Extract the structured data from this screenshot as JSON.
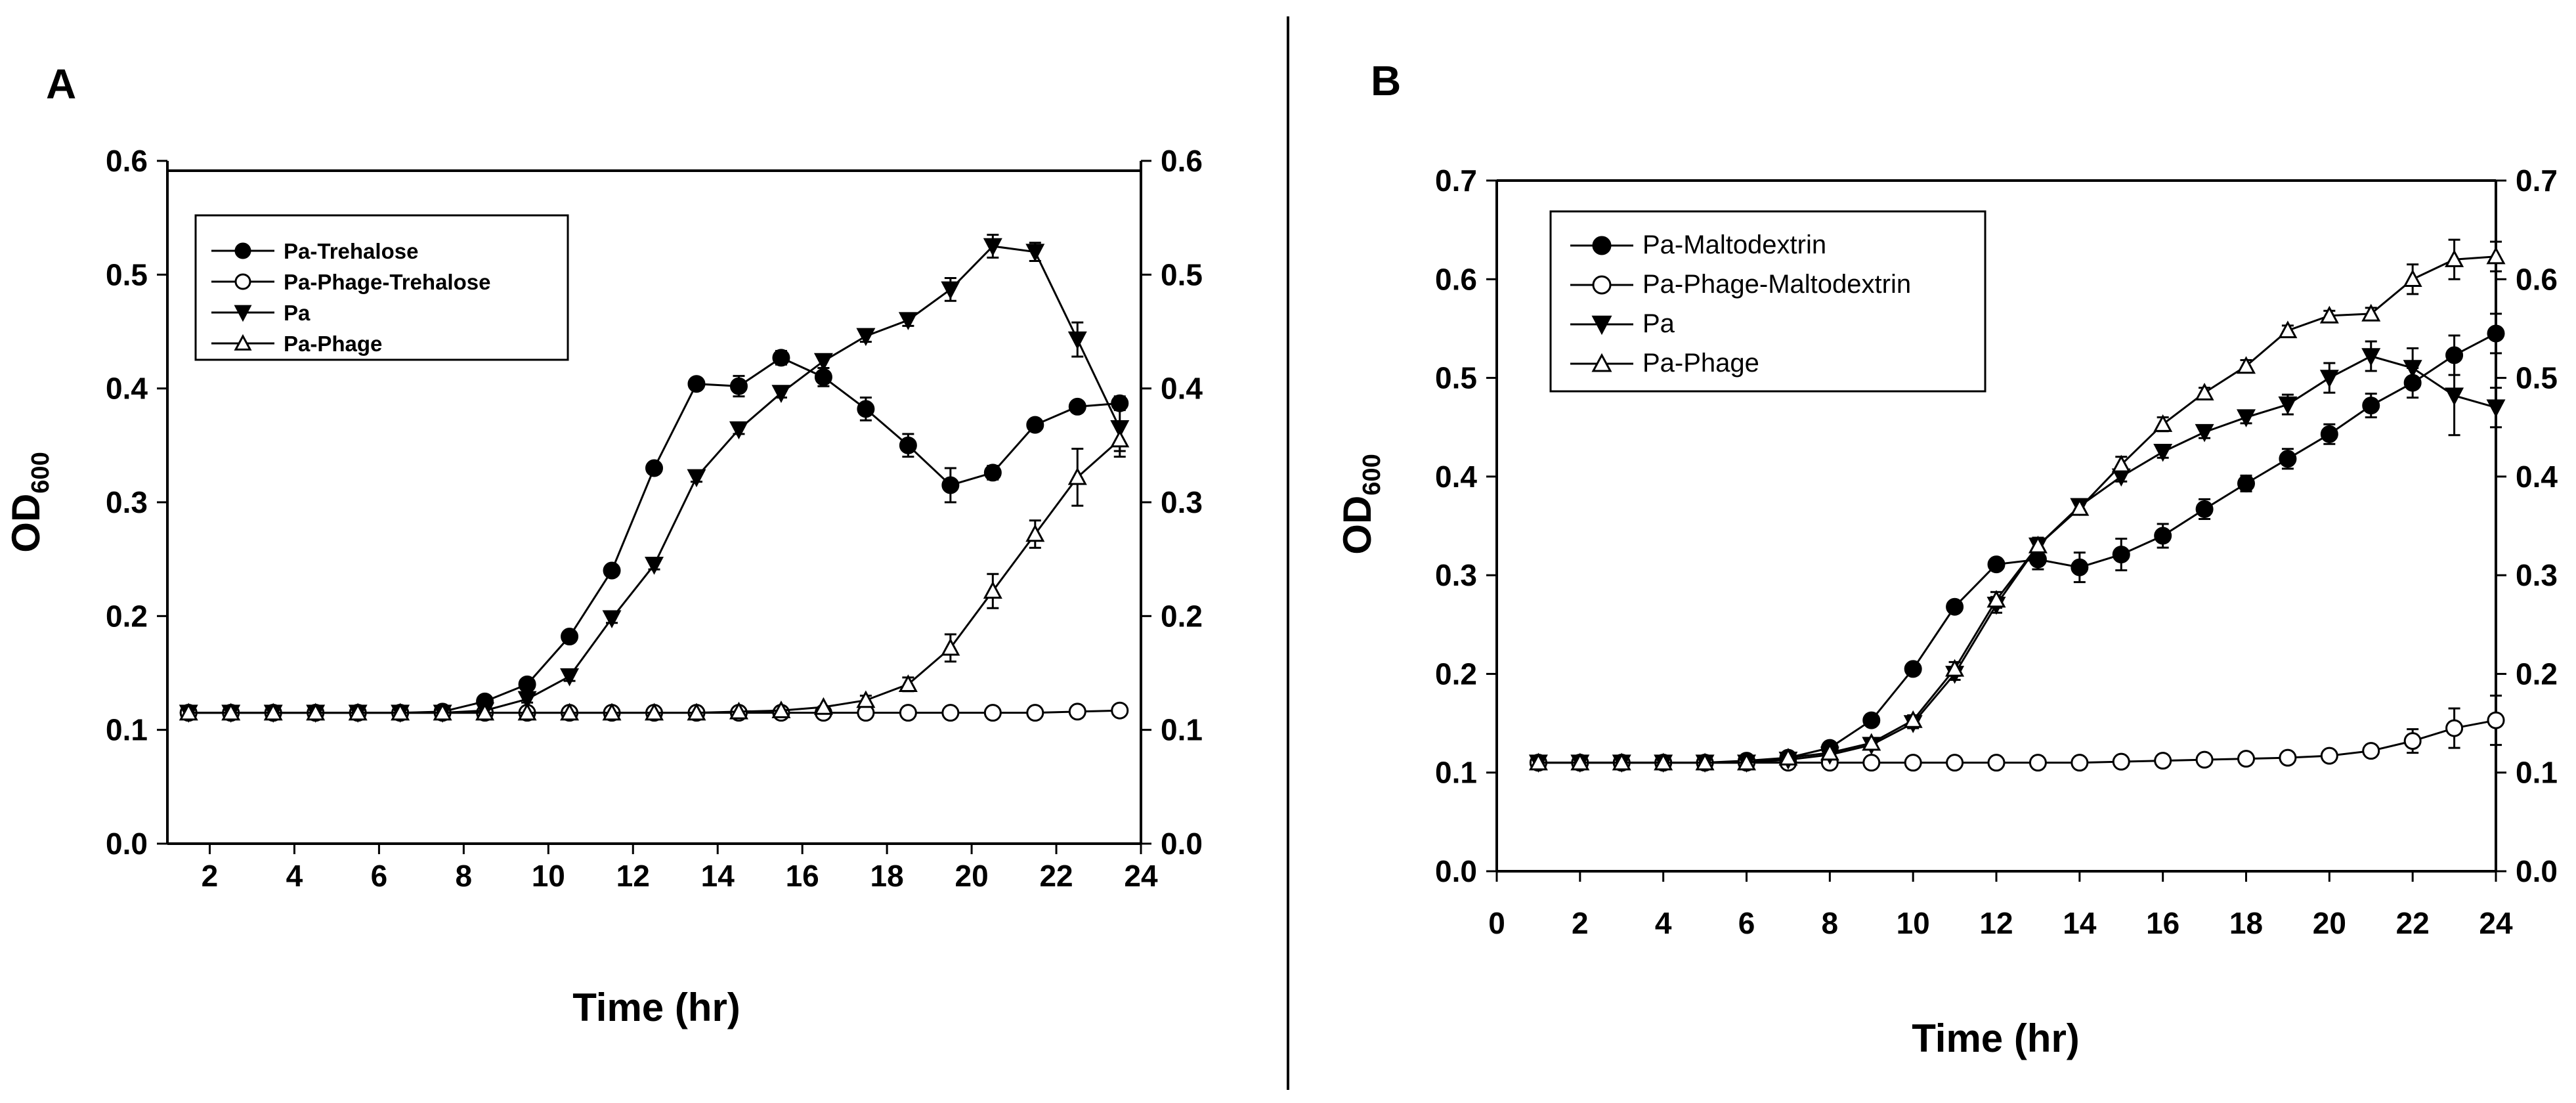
{
  "figure": {
    "divider_color": "#000000"
  },
  "chart_data": [
    {
      "panel_label": "A",
      "type": "line",
      "title": "",
      "xlabel": "Time (hr)",
      "ylabel_main": "OD",
      "ylabel_sub": "600",
      "xlim": [
        1,
        24
      ],
      "ylim": [
        0.0,
        0.6
      ],
      "y2lim": [
        0.0,
        0.6
      ],
      "xticks": [
        2,
        4,
        6,
        8,
        10,
        12,
        14,
        16,
        18,
        20,
        22,
        24
      ],
      "yticks": [
        "0.0",
        "0.1",
        "0.2",
        "0.3",
        "0.4",
        "0.5",
        "0.6"
      ],
      "y2ticks": [
        "0.0",
        "0.1",
        "0.2",
        "0.3",
        "0.4",
        "0.5",
        "0.6"
      ],
      "grid": false,
      "legend_position": "top-left",
      "x": [
        1.5,
        2.5,
        3.5,
        4.5,
        5.5,
        6.5,
        7.5,
        8.5,
        9.5,
        10.5,
        11.5,
        12.5,
        13.5,
        14.5,
        15.5,
        16.5,
        17.5,
        18.5,
        19.5,
        20.5,
        21.5,
        22.5,
        23.5
      ],
      "series": [
        {
          "name": "Pa-Trehalose",
          "marker": "filled-circle",
          "values": [
            0.115,
            0.115,
            0.115,
            0.115,
            0.115,
            0.115,
            0.116,
            0.125,
            0.14,
            0.182,
            0.24,
            0.33,
            0.404,
            0.402,
            0.427,
            0.41,
            0.382,
            0.35,
            0.315,
            0.326,
            0.368,
            0.384,
            0.387
          ],
          "errors": [
            0,
            0,
            0,
            0,
            0,
            0,
            0,
            0,
            0.004,
            0.005,
            0.005,
            0.005,
            0.005,
            0.009,
            0.006,
            0.008,
            0.01,
            0.01,
            0.015,
            0.006,
            0.005,
            0.005,
            0.006
          ]
        },
        {
          "name": "Pa-Phage-Trehalose",
          "marker": "open-circle",
          "values": [
            0.115,
            0.115,
            0.115,
            0.115,
            0.115,
            0.115,
            0.115,
            0.115,
            0.115,
            0.115,
            0.115,
            0.115,
            0.115,
            0.115,
            0.115,
            0.115,
            0.115,
            0.115,
            0.115,
            0.115,
            0.115,
            0.116,
            0.117
          ],
          "errors": [
            0,
            0,
            0,
            0,
            0,
            0,
            0,
            0,
            0,
            0,
            0,
            0,
            0,
            0,
            0,
            0,
            0,
            0,
            0,
            0,
            0,
            0,
            0
          ]
        },
        {
          "name": "Pa",
          "marker": "filled-triangle-down",
          "values": [
            0.115,
            0.115,
            0.115,
            0.115,
            0.115,
            0.115,
            0.115,
            0.117,
            0.127,
            0.147,
            0.198,
            0.245,
            0.322,
            0.364,
            0.396,
            0.424,
            0.446,
            0.46,
            0.487,
            0.525,
            0.52,
            0.443,
            0.365
          ],
          "errors": [
            0,
            0,
            0,
            0,
            0,
            0,
            0,
            0,
            0.003,
            0.004,
            0.004,
            0.004,
            0.004,
            0.004,
            0.004,
            0.006,
            0.005,
            0.005,
            0.01,
            0.01,
            0.008,
            0.015,
            0.02
          ]
        },
        {
          "name": "Pa-Phage",
          "marker": "open-triangle-up",
          "values": [
            0.115,
            0.115,
            0.115,
            0.115,
            0.115,
            0.115,
            0.115,
            0.115,
            0.115,
            0.115,
            0.115,
            0.115,
            0.115,
            0.116,
            0.117,
            0.12,
            0.126,
            0.14,
            0.172,
            0.222,
            0.272,
            0.322,
            0.355
          ],
          "errors": [
            0,
            0,
            0,
            0,
            0,
            0,
            0,
            0,
            0,
            0,
            0,
            0,
            0,
            0,
            0,
            0,
            0.004,
            0.006,
            0.012,
            0.015,
            0.012,
            0.025,
            0.015
          ]
        }
      ]
    },
    {
      "panel_label": "B",
      "type": "line",
      "title": "",
      "xlabel": "Time (hr)",
      "ylabel_main": "OD",
      "ylabel_sub": "600",
      "xlim": [
        0,
        24
      ],
      "ylim": [
        0.0,
        0.7
      ],
      "y2lim": [
        0.0,
        0.7
      ],
      "xticks": [
        0,
        2,
        4,
        6,
        8,
        10,
        12,
        14,
        16,
        18,
        20,
        22,
        24
      ],
      "yticks": [
        "0.0",
        "0.1",
        "0.2",
        "0.3",
        "0.4",
        "0.5",
        "0.6",
        "0.7"
      ],
      "y2ticks": [
        "0.0",
        "0.1",
        "0.2",
        "0.3",
        "0.4",
        "0.5",
        "0.6",
        "0.7"
      ],
      "grid": false,
      "legend_position": "top-left",
      "x": [
        1,
        2,
        3,
        4,
        5,
        6,
        7,
        8,
        9,
        10,
        11,
        12,
        13,
        14,
        15,
        16,
        17,
        18,
        19,
        20,
        21,
        22,
        23,
        24
      ],
      "series": [
        {
          "name": "Pa-Maltodextrin",
          "marker": "filled-circle",
          "values": [
            0.11,
            0.11,
            0.11,
            0.11,
            0.11,
            0.112,
            0.115,
            0.125,
            0.153,
            0.205,
            0.268,
            0.311,
            0.316,
            0.308,
            0.321,
            0.34,
            0.367,
            0.393,
            0.418,
            0.443,
            0.472,
            0.495,
            0.523,
            0.545
          ],
          "errors": [
            0,
            0,
            0,
            0,
            0,
            0,
            0,
            0,
            0.005,
            0.005,
            0.005,
            0.005,
            0.01,
            0.015,
            0.016,
            0.012,
            0.01,
            0.008,
            0.01,
            0.01,
            0.012,
            0.015,
            0.02,
            0.02
          ]
        },
        {
          "name": "Pa-Phage-Maltodextrin",
          "marker": "open-circle",
          "values": [
            0.11,
            0.11,
            0.11,
            0.11,
            0.11,
            0.11,
            0.11,
            0.11,
            0.11,
            0.11,
            0.11,
            0.11,
            0.11,
            0.11,
            0.111,
            0.112,
            0.113,
            0.114,
            0.115,
            0.117,
            0.122,
            0.132,
            0.145,
            0.153
          ],
          "errors": [
            0,
            0,
            0,
            0,
            0,
            0,
            0,
            0,
            0,
            0,
            0,
            0,
            0,
            0,
            0,
            0,
            0,
            0,
            0,
            0.003,
            0.005,
            0.012,
            0.02,
            0.025
          ]
        },
        {
          "name": "Pa",
          "marker": "filled-triangle-down",
          "values": [
            0.11,
            0.11,
            0.11,
            0.11,
            0.11,
            0.11,
            0.113,
            0.118,
            0.128,
            0.15,
            0.2,
            0.27,
            0.33,
            0.37,
            0.4,
            0.425,
            0.445,
            0.46,
            0.473,
            0.5,
            0.522,
            0.51,
            0.482,
            0.47
          ],
          "errors": [
            0,
            0,
            0,
            0,
            0,
            0,
            0,
            0,
            0.004,
            0.005,
            0.006,
            0.008,
            0.008,
            0.006,
            0.005,
            0.006,
            0.006,
            0.006,
            0.01,
            0.015,
            0.015,
            0.02,
            0.04,
            0.02
          ]
        },
        {
          "name": "Pa-Phage",
          "marker": "open-triangle-up",
          "values": [
            0.11,
            0.11,
            0.11,
            0.11,
            0.11,
            0.11,
            0.115,
            0.12,
            0.13,
            0.153,
            0.205,
            0.275,
            0.33,
            0.368,
            0.412,
            0.453,
            0.485,
            0.512,
            0.548,
            0.563,
            0.565,
            0.6,
            0.62,
            0.623
          ],
          "errors": [
            0,
            0,
            0,
            0,
            0,
            0,
            0,
            0,
            0.004,
            0.005,
            0.007,
            0.008,
            0.006,
            0.006,
            0.008,
            0.007,
            0.005,
            0.006,
            0.005,
            0.005,
            0.006,
            0.015,
            0.02,
            0.015
          ]
        }
      ]
    }
  ]
}
